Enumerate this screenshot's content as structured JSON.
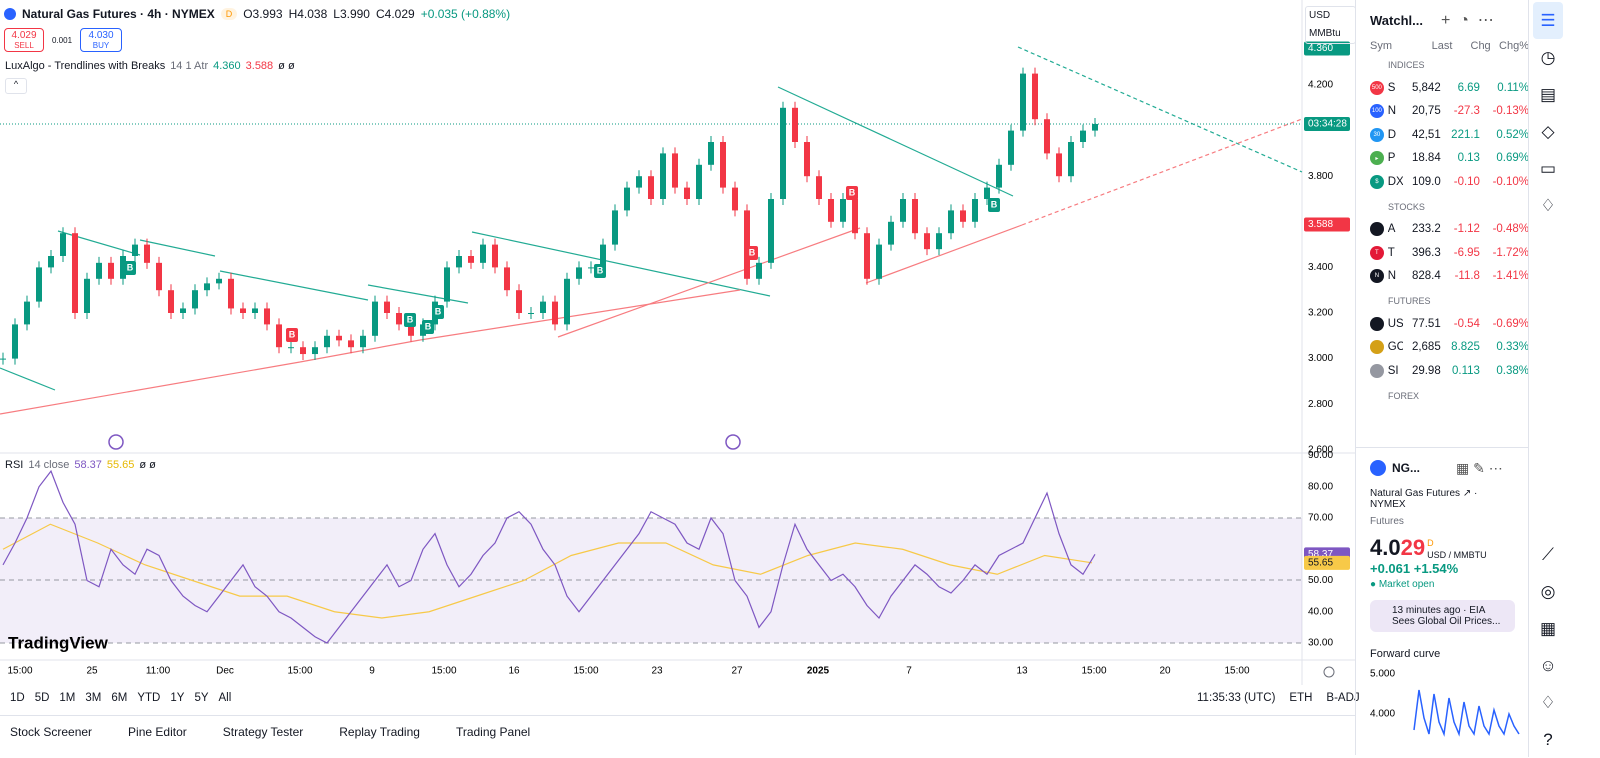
{
  "header": {
    "symbol": "Natural Gas Futures · 4h · NYMEX",
    "badge": "D",
    "open": "O3.993",
    "high": "H4.038",
    "low": "L3.990",
    "close": "C4.029",
    "change": "+0.035 (+0.88%)",
    "sell_price": "4.029",
    "sell": "SELL",
    "spread": "0.001",
    "buy_price": "4.030",
    "buy": "BUY",
    "currency": "USD",
    "unit": "MMBtu"
  },
  "indicator": {
    "name": "LuxAlgo - Trendlines with Breaks",
    "params": "14 1 Atr",
    "v1": "4.360",
    "v2": "3.588",
    "v3": "ø ø"
  },
  "rsi_legend": {
    "name": "RSI",
    "params": "14 close",
    "v1": "58.37",
    "v2": "55.65",
    "v3": "ø ø"
  },
  "price_chart": {
    "closes": [
      3.0,
      3.15,
      3.25,
      3.4,
      3.45,
      3.55,
      3.2,
      3.35,
      3.42,
      3.35,
      3.45,
      3.5,
      3.42,
      3.3,
      3.2,
      3.22,
      3.3,
      3.33,
      3.35,
      3.22,
      3.2,
      3.22,
      3.15,
      3.05,
      3.05,
      3.02,
      3.05,
      3.1,
      3.08,
      3.05,
      3.1,
      3.25,
      3.2,
      3.15,
      3.1,
      3.15,
      3.25,
      3.4,
      3.45,
      3.42,
      3.5,
      3.4,
      3.3,
      3.2,
      3.2,
      3.25,
      3.15,
      3.35,
      3.4,
      3.4,
      3.5,
      3.65,
      3.75,
      3.8,
      3.7,
      3.9,
      3.75,
      3.7,
      3.85,
      3.95,
      3.75,
      3.65,
      3.35,
      3.42,
      3.7,
      4.1,
      3.95,
      3.8,
      3.7,
      3.6,
      3.7,
      3.55,
      3.35,
      3.5,
      3.6,
      3.7,
      3.55,
      3.48,
      3.55,
      3.65,
      3.6,
      3.7,
      3.75,
      3.85,
      4.0,
      4.25,
      4.05,
      3.9,
      3.8,
      3.95,
      4.0,
      4.029
    ],
    "ticks": [
      {
        "value": 4.2,
        "label": "4.200"
      },
      {
        "value": 3.8,
        "label": "3.800"
      },
      {
        "value": 3.4,
        "label": "3.400"
      },
      {
        "value": 3.2,
        "label": "3.200"
      },
      {
        "value": 3.0,
        "label": "3.000"
      },
      {
        "value": 2.8,
        "label": "2.800"
      },
      {
        "value": 2.6,
        "label": "2.600"
      }
    ],
    "badges": [
      {
        "value": 4.36,
        "label": "4.360",
        "color": "#089981"
      },
      {
        "value": 3.588,
        "label": "3.588",
        "color": "#f23645"
      }
    ],
    "countdown": "03:34:28",
    "break_label": "B",
    "up_color": "#089981",
    "down_color": "#f23645"
  },
  "rsi_chart": {
    "values": [
      55,
      62,
      70,
      80,
      85,
      75,
      68,
      50,
      48,
      60,
      55,
      52,
      60,
      58,
      50,
      45,
      42,
      40,
      45,
      50,
      55,
      48,
      45,
      40,
      38,
      35,
      32,
      30,
      35,
      40,
      45,
      50,
      55,
      48,
      50,
      60,
      65,
      55,
      48,
      52,
      58,
      62,
      70,
      72,
      68,
      60,
      55,
      45,
      40,
      45,
      50,
      55,
      60,
      65,
      72,
      70,
      68,
      62,
      60,
      70,
      65,
      50,
      45,
      35,
      40,
      55,
      68,
      60,
      55,
      50,
      52,
      48,
      42,
      38,
      45,
      50,
      55,
      52,
      48,
      46,
      50,
      55,
      52,
      58,
      60,
      62,
      70,
      78,
      65,
      55,
      52,
      58.37
    ],
    "ma": [
      60,
      68,
      62,
      55,
      50,
      45,
      45,
      40,
      38,
      40,
      45,
      50,
      58,
      62,
      62,
      55,
      52,
      58,
      62,
      60,
      55,
      52,
      58,
      55.65
    ],
    "ticks": [
      {
        "value": 90,
        "label": "90.00"
      },
      {
        "value": 80,
        "label": "80.00"
      },
      {
        "value": 70,
        "label": "70.00"
      },
      {
        "value": 50,
        "label": "50.00"
      },
      {
        "value": 40,
        "label": "40.00"
      },
      {
        "value": 30,
        "label": "30.00"
      }
    ],
    "badges": [
      {
        "value": 58.37,
        "label": "58.37",
        "color": "#7e57c2"
      },
      {
        "value": 55.65,
        "label": "55.65",
        "color": "#f7c948"
      }
    ],
    "color": "#7e57c2",
    "ma_color": "#f7c948",
    "brand": "TradingView"
  },
  "time_axis": [
    "15:00",
    "25",
    "11:00",
    "Dec",
    "15:00",
    "9",
    "15:00",
    "16",
    "15:00",
    "23",
    "27",
    "2025",
    "7",
    "13",
    "15:00",
    "20",
    "15:00"
  ],
  "toolbar": {
    "ranges": [
      "1D",
      "5D",
      "1M",
      "3M",
      "6M",
      "YTD",
      "1Y",
      "5Y",
      "All"
    ],
    "clock": "11:35:33 (UTC)",
    "session": "ETH",
    "adjust": "B-ADJ"
  },
  "bottom_tabs": [
    "Stock Screener",
    "Pine Editor",
    "Strategy Tester",
    "Replay Trading",
    "Trading Panel"
  ],
  "watchlist": {
    "title": "Watchl...",
    "columns": [
      "Sym",
      "Last",
      "Chg",
      "Chg%"
    ],
    "sections": [
      {
        "name": "INDICES",
        "rows": [
          {
            "icon": "500",
            "color": "#f23645",
            "sym": "S",
            "last": "5,842",
            "chg": "6.69",
            "chgp": "0.11%"
          },
          {
            "icon": "100",
            "color": "#2962ff",
            "sym": "N",
            "last": "20,75",
            "chg": "-27.3",
            "chgp": "-0.13%"
          },
          {
            "icon": "30",
            "color": "#2196f3",
            "sym": "D",
            "last": "42,51",
            "chg": "221.1",
            "chgp": "0.52%"
          },
          {
            "icon": "▸",
            "color": "#4caf50",
            "sym": "P",
            "last": "18.84",
            "chg": "0.13",
            "chgp": "0.69%"
          },
          {
            "icon": "$",
            "color": "#089981",
            "sym": "DX",
            "last": "109.0",
            "chg": "-0.10",
            "chgp": "-0.10%"
          }
        ]
      },
      {
        "name": "STOCKS",
        "rows": [
          {
            "icon": "",
            "color": "#131722",
            "sym": "A",
            "last": "233.2",
            "chg": "-1.12",
            "chgp": "-0.48%"
          },
          {
            "icon": "T",
            "color": "#e31937",
            "sym": "T",
            "last": "396.3",
            "chg": "-6.95",
            "chgp": "-1.72%"
          },
          {
            "icon": "N",
            "color": "#131722",
            "sym": "N",
            "last": "828.4",
            "chg": "-11.8",
            "chgp": "-1.41%"
          }
        ]
      },
      {
        "name": "FUTURES",
        "rows": [
          {
            "icon": "",
            "color": "#131722",
            "sym": "US",
            "last": "77.51",
            "chg": "-0.54",
            "chgp": "-0.69%"
          },
          {
            "icon": "",
            "color": "#d4a017",
            "sym": "GC",
            "last": "2,685",
            "chg": "8.825",
            "chgp": "0.33%"
          },
          {
            "icon": "",
            "color": "#9598a1",
            "sym": "SI",
            "last": "29.98",
            "chg": "0.113",
            "chgp": "0.38%"
          }
        ]
      },
      {
        "name": "FOREX",
        "rows": []
      }
    ]
  },
  "detail": {
    "symbol": "NG...",
    "name": "Natural Gas Futures",
    "exchange": "NYMEX",
    "kind": "Futures",
    "price_main": "4.0",
    "price_end": "29",
    "flag": "D",
    "unit": "USD / MMBTU",
    "change": "+0.061",
    "change_pct": "+1.54%",
    "status": "Market open",
    "news_time": "13 minutes ago · EIA",
    "news_text": "Sees Global Oil Prices...",
    "curve_title": "Forward curve",
    "curve": {
      "ticks": [
        {
          "value": 5,
          "label": "5.000"
        },
        {
          "value": 4,
          "label": "4.000"
        }
      ],
      "values": [
        3.6,
        4.6,
        3.9,
        3.5,
        4.5,
        3.8,
        3.5,
        4.4,
        3.8,
        3.5,
        4.3,
        3.7,
        3.5,
        4.2,
        3.7,
        3.5,
        4.1,
        3.7,
        3.5,
        4.0,
        3.7,
        3.5
      ]
    }
  }
}
